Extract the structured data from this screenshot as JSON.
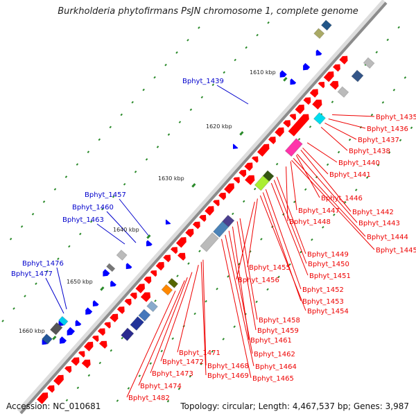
{
  "title": "Burkholderia phytofirmans PsJN chromosome 1, complete genome",
  "footer": {
    "accession": "Accession: NC_010681",
    "topology": "Topology: circular; Length: 4,467,537 bp; Genes: 3,987"
  },
  "scale_labels": [
    "1610 kbp",
    "1620 kbp",
    "1630 kbp",
    "1640 kbp",
    "1650 kbp",
    "1660 kbp"
  ],
  "gene_labels_blue": [
    "Bphyt_1439",
    "Bphyt_1457",
    "Bphyt_1460",
    "Bphyt_1463",
    "Bphyt_1476",
    "Bphyt_1477"
  ],
  "gene_labels_red": [
    "Bphyt_1435",
    "Bphyt_1436",
    "Bphyt_1437",
    "Bphyt_1438",
    "Bphyt_1440",
    "Bphyt_1441",
    "Bphyt_1446",
    "Bphyt_1442",
    "Bphyt_1447",
    "Bphyt_1443",
    "Bphyt_1448",
    "Bphyt_1444",
    "Bphyt_1445",
    "Bphyt_1449",
    "Bphyt_1450",
    "Bphyt_1455",
    "Bphyt_1451",
    "Bphyt_1456",
    "Bphyt_1452",
    "Bphyt_1453",
    "Bphyt_1454",
    "Bphyt_1458",
    "Bphyt_1459",
    "Bphyt_1461",
    "Bphyt_1462",
    "Bphyt_1471",
    "Bphyt_1472",
    "Bphyt_1464",
    "Bphyt_1468",
    "Bphyt_1473",
    "Bphyt_1469",
    "Bphyt_1465",
    "Bphyt_1474",
    "Bphyt_1482"
  ],
  "colors": {
    "backbone": "#8c8c8c",
    "forward_cds": "#ff0000",
    "reverse_cds": "#0000ff",
    "label_red": "#ee0000",
    "label_blue": "#0000cc",
    "scale_tick": "#2a8a2a"
  }
}
